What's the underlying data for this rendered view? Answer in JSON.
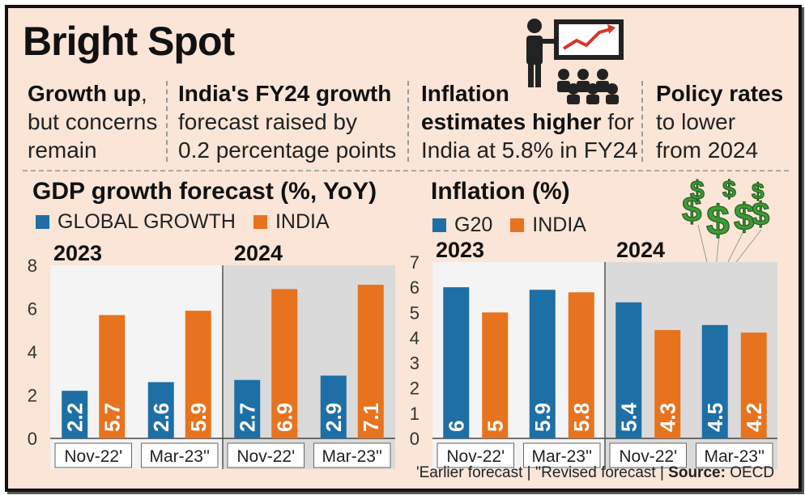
{
  "title": "Bright Spot",
  "highlights": [
    {
      "lines": [
        [
          "Growth up",
          ","
        ],
        [
          "but concerns",
          ""
        ],
        [
          "remain",
          ""
        ]
      ],
      "bold_first": true
    },
    {
      "lines": [
        [
          "India's FY24 growth",
          ""
        ],
        [
          "forecast raised by",
          ""
        ],
        [
          "0.2 percentage points",
          ""
        ]
      ],
      "bold_first": true
    },
    {
      "lines": [
        [
          "Inflation",
          ""
        ],
        [
          "estimates higher",
          " for"
        ],
        [
          "India at 5.8% in FY24",
          ""
        ]
      ],
      "bold_first_two": true
    },
    {
      "lines": [
        [
          "Policy rates",
          ""
        ],
        [
          "to lower",
          ""
        ],
        [
          "from 2024",
          ""
        ]
      ],
      "bold_first": true
    }
  ],
  "h1": {
    "t0": "Growth up",
    "t0b": ",",
    "t1": "but concerns",
    "t2": "remain"
  },
  "h2": {
    "t0": "India's FY24 growth",
    "t1": "forecast raised by",
    "t2": "0.2 percentage points"
  },
  "h3": {
    "t0": "Inflation",
    "t1a": "estimates higher",
    "t1b": " for",
    "t2": "India at 5.8% in FY24"
  },
  "h4": {
    "t0": "Policy rates",
    "t1": "to lower",
    "t2": "from 2024"
  },
  "colors": {
    "blue": "#1d6fa5",
    "orange": "#e8731e",
    "panel_2023": "#f4f4f4",
    "panel_2024": "#dadada"
  },
  "footer": {
    "earlier": "'Earlier forecast",
    "sep1": " | ",
    "revised": "''Revised forecast",
    "sep2": " | ",
    "source_label": "Source:",
    "source": " OECD"
  },
  "chart_data": [
    {
      "type": "bar",
      "title": "GDP growth forecast (%, YoY)",
      "legend": [
        "GLOBAL GROWTH",
        "INDIA"
      ],
      "groups": [
        "2023",
        "2024"
      ],
      "categories": [
        "Nov-22'",
        "Mar-23''",
        "Nov-22'",
        "Mar-23''"
      ],
      "series": [
        {
          "name": "GLOBAL GROWTH",
          "values": [
            2.2,
            2.6,
            2.7,
            2.9
          ],
          "labels": [
            "2.2",
            "2.6",
            "2.7",
            "2.9"
          ]
        },
        {
          "name": "INDIA",
          "values": [
            5.7,
            5.9,
            6.9,
            7.1
          ],
          "labels": [
            "5.7",
            "5.9",
            "6.9",
            "7.1"
          ]
        }
      ],
      "yticks": [
        "0",
        "2",
        "4",
        "6",
        "8"
      ],
      "ylim": [
        0,
        8
      ]
    },
    {
      "type": "bar",
      "title": "Inflation (%)",
      "legend": [
        "G20",
        "INDIA"
      ],
      "groups": [
        "2023",
        "2024"
      ],
      "categories": [
        "Nov-22'",
        "Mar-23''",
        "Nov-22'",
        "Mar-23''"
      ],
      "series": [
        {
          "name": "G20",
          "values": [
            6,
            5.9,
            5.4,
            4.5
          ],
          "labels": [
            "6",
            "5.9",
            "5.4",
            "4.5"
          ]
        },
        {
          "name": "INDIA",
          "values": [
            5,
            5.8,
            4.3,
            4.2
          ],
          "labels": [
            "5",
            "5.8",
            "4.3",
            "4.2"
          ]
        }
      ],
      "yticks": [
        "0",
        "1",
        "2",
        "3",
        "4",
        "5",
        "6",
        "7"
      ],
      "ylim": [
        0,
        7
      ]
    }
  ]
}
